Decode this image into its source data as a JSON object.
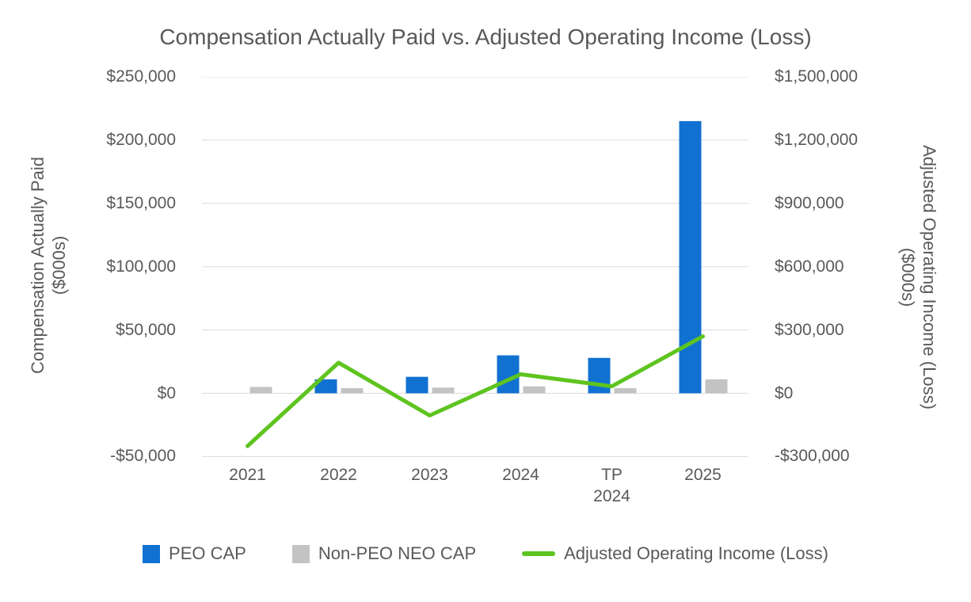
{
  "chart_data": {
    "type": "bar",
    "title": "Compensation Actually Paid vs. Adjusted Operating Income (Loss)",
    "categories": [
      "2021",
      "2022",
      "2023",
      "2024",
      "TP\n2024",
      "2025"
    ],
    "series": [
      {
        "name": "PEO CAP",
        "type": "bar",
        "axis": "left",
        "color": "#1171D1",
        "values": [
          0,
          11000,
          13000,
          30000,
          28000,
          215000
        ]
      },
      {
        "name": "Non-PEO NEO CAP",
        "type": "bar",
        "axis": "left",
        "color": "#C3C3C3",
        "values": [
          5000,
          4000,
          4500,
          5500,
          4000,
          11000
        ]
      },
      {
        "name": "Adjusted Operating Income (Loss)",
        "type": "line",
        "axis": "right",
        "color": "#5EC41F",
        "values": [
          -250000,
          145000,
          -105000,
          90000,
          33000,
          270000
        ]
      }
    ],
    "left_axis": {
      "title": "Compensation Actually Paid",
      "units": "($000s)",
      "ticks": [
        "$250,000",
        "$200,000",
        "$150,000",
        "$100,000",
        "$50,000",
        "$0",
        "-$50,000"
      ],
      "ylim": [
        -50000,
        250000
      ]
    },
    "right_axis": {
      "title": "Adjusted Operating Income (Loss)",
      "units": "($000s)",
      "ticks": [
        "$1,500,000",
        "$1,200,000",
        "$900,000",
        "$600,000",
        "$300,000",
        "$0",
        "-$300,000"
      ],
      "ylim": [
        -300000,
        1500000
      ]
    },
    "legend": [
      {
        "label": "PEO CAP",
        "swatch": "square",
        "color": "#1171D1"
      },
      {
        "label": "Non-PEO NEO CAP",
        "swatch": "square",
        "color": "#C3C3C3"
      },
      {
        "label": "Adjusted Operating Income (Loss)",
        "swatch": "line",
        "color": "#5EC41F"
      }
    ],
    "grid": true,
    "legend_position": "bottom",
    "colors": {
      "text": "#595959",
      "gridline": "#DCDCDC",
      "background": "#FFFFFF"
    }
  }
}
